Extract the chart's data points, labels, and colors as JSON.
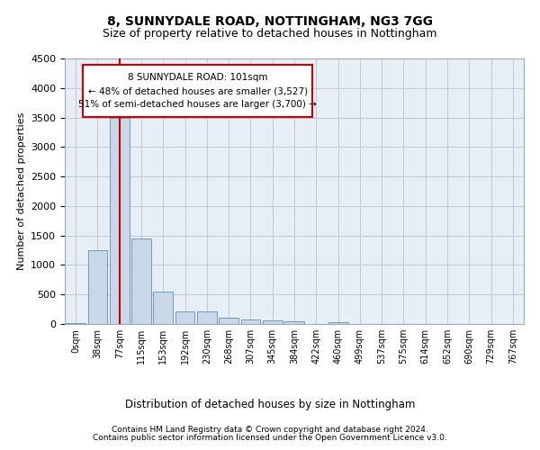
{
  "title1": "8, SUNNYDALE ROAD, NOTTINGHAM, NG3 7GG",
  "title2": "Size of property relative to detached houses in Nottingham",
  "xlabel": "Distribution of detached houses by size in Nottingham",
  "ylabel": "Number of detached properties",
  "categories": [
    "0sqm",
    "38sqm",
    "77sqm",
    "115sqm",
    "153sqm",
    "192sqm",
    "230sqm",
    "268sqm",
    "307sqm",
    "345sqm",
    "384sqm",
    "422sqm",
    "460sqm",
    "499sqm",
    "537sqm",
    "575sqm",
    "614sqm",
    "652sqm",
    "690sqm",
    "729sqm",
    "767sqm"
  ],
  "values": [
    20,
    1250,
    3500,
    1450,
    550,
    220,
    210,
    100,
    75,
    55,
    40,
    0,
    30,
    0,
    0,
    0,
    0,
    0,
    0,
    0,
    0
  ],
  "bar_color": "#c8d8e8",
  "bar_edge_color": "#7399bb",
  "vline_x": 2,
  "vline_color": "#cc0000",
  "annotation_box_text": "8 SUNNYDALE ROAD: 101sqm\n← 48% of detached houses are smaller (3,527)\n51% of semi-detached houses are larger (3,700) →",
  "grid_color": "#c0c8d8",
  "background_color": "#e8eef5",
  "ylim": [
    0,
    4500
  ],
  "yticks": [
    0,
    500,
    1000,
    1500,
    2000,
    2500,
    3000,
    3500,
    4000,
    4500
  ],
  "footer_line1": "Contains HM Land Registry data © Crown copyright and database right 2024.",
  "footer_line2": "Contains public sector information licensed under the Open Government Licence v3.0."
}
